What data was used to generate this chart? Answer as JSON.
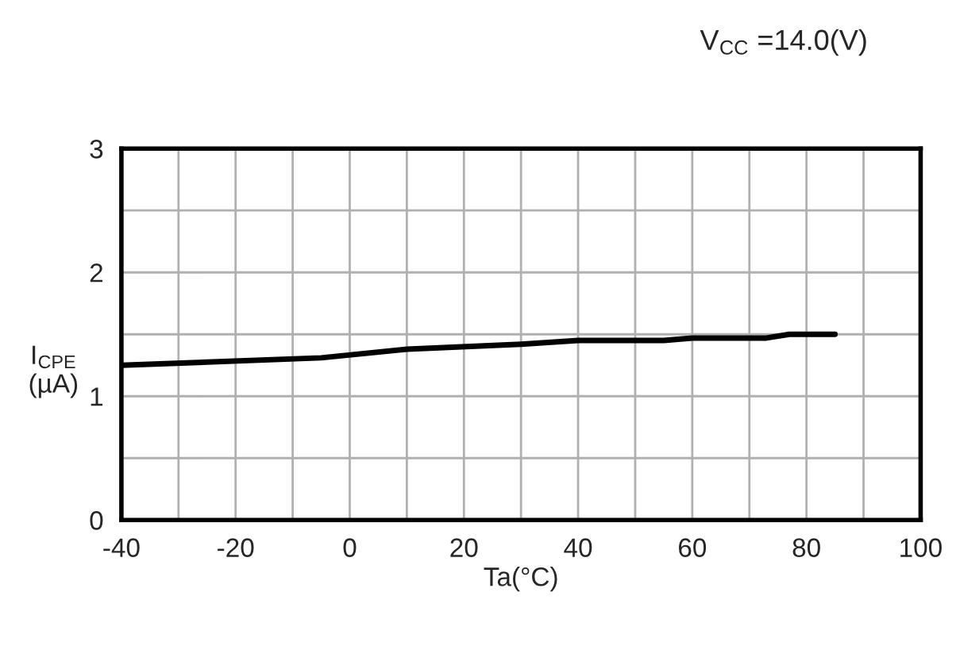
{
  "chart_data": {
    "type": "line",
    "annotations": [
      "V$_{CC}$ =14.0(V)"
    ],
    "xlabel": "Ta(°C)",
    "ylabel": "I$_{CPE}$\n(µA)",
    "x": [
      -40,
      -5,
      10,
      30,
      40,
      55,
      60,
      73,
      77,
      85
    ],
    "series": [
      {
        "color": "#000000",
        "values": [
          1.25,
          1.31,
          1.38,
          1.42,
          1.45,
          1.45,
          1.47,
          1.47,
          1.5,
          1.5
        ]
      }
    ],
    "xlim": [
      -40,
      100
    ],
    "xticks": [
      -40,
      {
        "value": -30,
        "label": null
      },
      -20,
      {
        "value": -10,
        "label": null
      },
      0,
      {
        "value": 10,
        "label": null
      },
      20,
      {
        "value": 30,
        "label": null
      },
      40,
      {
        "value": 50,
        "label": null
      },
      60,
      {
        "value": 70,
        "label": null
      },
      80,
      {
        "value": 90,
        "label": null
      },
      100
    ],
    "ylim": [
      0,
      3
    ],
    "yticks": [
      0,
      {
        "value": 0.5,
        "label": null
      },
      1,
      {
        "value": 1.5,
        "label": null
      },
      2,
      {
        "value": 2.5,
        "label": null
      },
      3
    ],
    "grid": true,
    "marker": "none",
    "line_style": "solid"
  }
}
